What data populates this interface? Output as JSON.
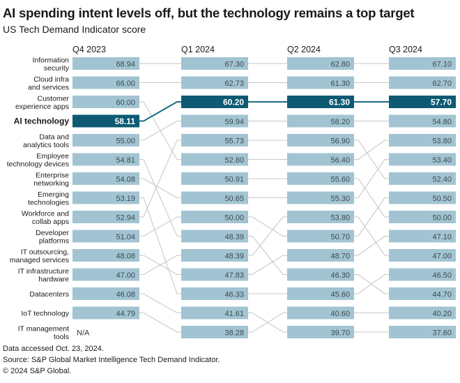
{
  "title": "AI spending intent levels off, but the technology remains a top target",
  "subtitle": "US Tech Demand Indicator score",
  "footer": {
    "line1": "Data accessed Oct. 23, 2024.",
    "line2": "Source: S&P Global Market Intelligence Tech Demand Indicator.",
    "line3": "© 2024 S&P Global."
  },
  "colors": {
    "bar": "#a2c4d2",
    "highlight": "#0e5a73",
    "line": "#c8c8c8",
    "highlight_line": "#1a6a85",
    "na_text": "#333333"
  },
  "chart_data": {
    "type": "bump",
    "periods": [
      "Q4 2023",
      "Q1 2024",
      "Q2 2024",
      "Q3 2024"
    ],
    "highlight": "AI technology",
    "na_label": "N/A",
    "series": [
      {
        "name": "Information security",
        "label": [
          "Information",
          "security"
        ],
        "values": [
          68.94,
          67.3,
          62.8,
          67.1
        ],
        "display": [
          "68.94",
          "67.30",
          "62.80",
          "67.10"
        ]
      },
      {
        "name": "Cloud infra and services",
        "label": [
          "Cloud infra",
          "and services"
        ],
        "values": [
          66.0,
          62.73,
          61.3,
          62.7
        ],
        "display": [
          "66.00",
          "62.73",
          "61.30",
          "62.70"
        ]
      },
      {
        "name": "Customer experience apps",
        "label": [
          "Customer",
          "experience apps"
        ],
        "values": [
          60.0,
          52.8,
          56.4,
          53.8
        ],
        "display": [
          "60.00",
          "52.80",
          "56.40",
          "53.80"
        ]
      },
      {
        "name": "AI technology",
        "label": [
          "AI technology"
        ],
        "values": [
          58.11,
          60.2,
          61.3,
          57.7
        ],
        "display": [
          "58.11",
          "60.20",
          "61.30",
          "57.70"
        ]
      },
      {
        "name": "Data and analytics tools",
        "label": [
          "Data and",
          "analytics tools"
        ],
        "values": [
          55.0,
          59.94,
          58.2,
          54.8
        ],
        "display": [
          "55.00",
          "59.94",
          "58.20",
          "54.80"
        ]
      },
      {
        "name": "Employee technology devices",
        "label": [
          "Employee",
          "technology devices"
        ],
        "values": [
          54.81,
          48.39,
          46.3,
          44.7
        ],
        "display": [
          "54.81",
          "48.39",
          "46.30",
          "44.70"
        ]
      },
      {
        "name": "Enterprise networking",
        "label": [
          "Enterprise",
          "networking"
        ],
        "values": [
          54.08,
          50.65,
          55.3,
          53.4
        ],
        "display": [
          "54.08",
          "50.65",
          "55.30",
          "53.40"
        ]
      },
      {
        "name": "Emerging technologies",
        "label": [
          "Emerging",
          "technologies"
        ],
        "values": [
          53.19,
          46.33,
          45.6,
          46.5
        ],
        "display": [
          "53.19",
          "46.33",
          "45.60",
          "46.50"
        ]
      },
      {
        "name": "Workforce and collab apps",
        "label": [
          "Workforce and",
          "collab apps"
        ],
        "values": [
          52.94,
          55.73,
          56.9,
          52.4
        ],
        "display": [
          "52.94",
          "55.73",
          "56.90",
          "52.40"
        ]
      },
      {
        "name": "Developer platforms",
        "label": [
          "Developer",
          "platforms"
        ],
        "values": [
          51.04,
          50.0,
          50.7,
          50.5
        ],
        "display": [
          "51.04",
          "50.00",
          "50.70",
          "50.50"
        ]
      },
      {
        "name": "IT outsourcing, managed services",
        "label": [
          "IT outsourcing,",
          "managed services"
        ],
        "values": [
          48.08,
          47.83,
          48.7,
          47.1
        ],
        "display": [
          "48.08",
          "47.83",
          "48.70",
          "47.10"
        ]
      },
      {
        "name": "IT infrastructure hardware",
        "label": [
          "IT infrastructure",
          "hardware"
        ],
        "values": [
          47.0,
          48.39,
          53.8,
          47.0
        ],
        "display": [
          "47.00",
          "48.39",
          "53.80",
          "47.00"
        ]
      },
      {
        "name": "Datacenters",
        "label": [
          "Datacenters"
        ],
        "values": [
          46.08,
          41.61,
          39.7,
          37.6
        ],
        "display": [
          "46.08",
          "41.61",
          "39.70",
          "37.60"
        ]
      },
      {
        "name": "IoT technology",
        "label": [
          "IoT technology"
        ],
        "values": [
          44.79,
          38.28,
          40.6,
          40.2
        ],
        "display": [
          "44.79",
          "38.28",
          "40.60",
          "40.20"
        ]
      },
      {
        "name": "IT management tools",
        "label": [
          "IT management",
          "tools"
        ],
        "values": [
          null,
          50.91,
          55.6,
          50.0
        ],
        "display": [
          "N/A",
          "50.91",
          "55.60",
          "50.00"
        ]
      }
    ]
  }
}
